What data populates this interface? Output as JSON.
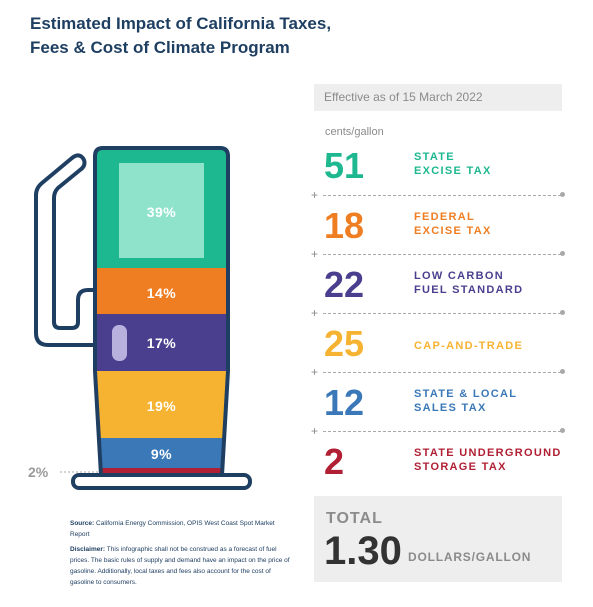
{
  "title": {
    "line1": "Estimated Impact of California Taxes,",
    "line2": "Fees & Cost of Climate Program"
  },
  "effective": "Effective as of 15 March 2022",
  "units": "cents/gallon",
  "pump": {
    "segments": [
      {
        "label": "39%",
        "color": "#1db88f"
      },
      {
        "label": "14%",
        "color": "#ef7d22"
      },
      {
        "label": "17%",
        "color": "#4a3f8f"
      },
      {
        "label": "19%",
        "color": "#f6b331"
      },
      {
        "label": "9%",
        "color": "#3a78b8"
      },
      {
        "label": "2%",
        "color": "#b01f33"
      }
    ],
    "outline_color": "#1f3f62",
    "small_label": "2%"
  },
  "rows": [
    {
      "value": "51",
      "line1": "STATE",
      "line2": "EXCISE TAX",
      "color": "#1db88f"
    },
    {
      "value": "18",
      "line1": "FEDERAL",
      "line2": "EXCISE TAX",
      "color": "#ef7d22"
    },
    {
      "value": "22",
      "line1": "LOW CARBON",
      "line2": "FUEL STANDARD",
      "color": "#4a3f8f"
    },
    {
      "value": "25",
      "line1": "CAP-AND-TRADE",
      "line2": "",
      "color": "#f6b331"
    },
    {
      "value": "12",
      "line1": "STATE & LOCAL",
      "line2": "SALES TAX",
      "color": "#3a78b8"
    },
    {
      "value": "2",
      "line1": "STATE UNDERGROUND",
      "line2": "STORAGE TAX",
      "color": "#b01f33"
    }
  ],
  "separator_symbol": "+",
  "total": {
    "label": "TOTAL",
    "value": "1.30",
    "unit": "DOLLARS/GALLON"
  },
  "notes": {
    "source_label": "Source:",
    "source_text": "California Energy Commission, OPIS West Coast Spot Market Report",
    "disclaimer_label": "Disclaimer:",
    "disclaimer_text": "This infographic shall not be construed as a forecast of fuel prices. The basic rules of supply and demand have an impact on the price of gasoline. Additionally, local taxes and fees also account for the cost of gasoline to consumers."
  }
}
